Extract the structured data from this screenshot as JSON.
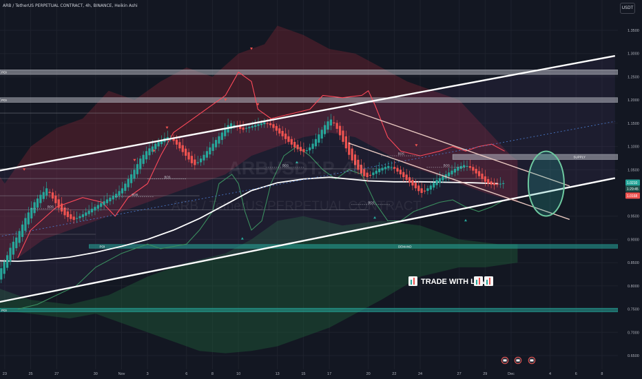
{
  "header": {
    "title": "ARB / TetherUS PERPETUAL CONTRACT, 4h, BINANCE, Heikin Ashi",
    "currency": "USDT"
  },
  "watermark": {
    "symbol": "ARBUSDT.P, 4h",
    "name": "ARB / TetherUS PERPETUAL CONTRACT"
  },
  "banner": {
    "text": "TRADE WITH LOVE",
    "emoji": "📈"
  },
  "colors": {
    "background": "#131722",
    "bull": "#26a69a",
    "bear": "#ef5350",
    "zone_gray": "#b2b5be",
    "zone_teal": "#26a69a",
    "supply_cloud": "#8b2635",
    "demand_cloud": "#1f5e3a",
    "channel": "#ffffff",
    "last_price_tag": "#26a69a",
    "low_tag": "#ef5350",
    "ma_white": "#ffffff",
    "envelope_red": "#ff4a5a",
    "envelope_green": "#3b8e5f",
    "dotted_mid": "#4a78c8",
    "falling_channel": "#e8c8c0"
  },
  "chart_data": {
    "type": "candlestick",
    "title": "ARB / TetherUS PERPETUAL CONTRACT, 4h, BINANCE, Heikin Ashi",
    "y_ticks": [
      "1.3500",
      "1.3000",
      "1.2500",
      "1.2000",
      "1.1500",
      "1.1000",
      "1.0500",
      "0.9500",
      "0.9000",
      "0.8500",
      "0.8000",
      "0.7500",
      "0.7000",
      "0.6500"
    ],
    "x_ticks": [
      "23",
      "25",
      "27",
      "30",
      "Nov",
      "3",
      "6",
      "8",
      "10",
      "13",
      "15",
      "17",
      "20",
      "22",
      "24",
      "27",
      "29",
      "Dec",
      "4",
      "6",
      "8"
    ],
    "ylim": [
      0.63,
      1.37
    ],
    "x_range": [
      "Oct 22",
      "Dec 9"
    ],
    "price_tags": [
      {
        "label": "1.0210",
        "kind": "last"
      },
      {
        "label": "1:29:45",
        "kind": "countdown"
      },
      {
        "label": "1.0168",
        "kind": "low"
      }
    ],
    "zones": [
      {
        "label": "POI",
        "y1": 1.265,
        "y2": 1.255,
        "kind": "gray"
      },
      {
        "label": "POI",
        "y1": 1.205,
        "y2": 1.195,
        "kind": "gray"
      },
      {
        "label": "SUPPLY",
        "y1": 1.083,
        "y2": 1.072,
        "kind": "gray"
      },
      {
        "label": "POI",
        "y1": 0.889,
        "y2": 0.881,
        "kind": "teal"
      },
      {
        "label": "DEMAND",
        "y1": 0.889,
        "y2": 0.881,
        "kind": "teal"
      },
      {
        "label": "POI",
        "y1": 0.752,
        "y2": 0.744,
        "kind": "teal"
      }
    ],
    "structure_labels": [
      "BOS",
      "BOS",
      "BOS",
      "BOS",
      "BOS",
      "BOS",
      "BOS"
    ],
    "key_levels": [
      1.172,
      1.052,
      1.031,
      0.994,
      0.964,
      0.911
    ],
    "rising_channel": {
      "upper": [
        {
          "x": 0,
          "y": 1.045
        },
        {
          "x": 48,
          "y": 1.295
        }
      ],
      "lower": [
        {
          "x": 0,
          "y": 0.762
        },
        {
          "x": 48,
          "y": 1.032
        }
      ],
      "mid": [
        {
          "x": 0,
          "y": 0.903
        },
        {
          "x": 48,
          "y": 1.154
        }
      ]
    },
    "falling_channel": {
      "upper": [
        {
          "x": 27.5,
          "y": 1.18
        },
        {
          "x": 44.5,
          "y": 1.015
        }
      ],
      "lower": [
        {
          "x": 27.5,
          "y": 1.107
        },
        {
          "x": 44.5,
          "y": 0.943
        }
      ]
    },
    "target_circle": {
      "x": 42.7,
      "y": 1.02
    },
    "closes": [
      0.786,
      0.798,
      0.812,
      0.826,
      0.838,
      0.852,
      0.866,
      0.882,
      0.895,
      0.904,
      0.918,
      0.932,
      0.946,
      0.958,
      0.968,
      0.98,
      0.988,
      0.996,
      1.002,
      1.01,
      1.0,
      0.988,
      0.978,
      0.968,
      0.96,
      0.952,
      0.948,
      0.944,
      0.942,
      0.946,
      0.95,
      0.954,
      0.958,
      0.962,
      0.966,
      0.97,
      0.974,
      0.978,
      0.982,
      0.986,
      0.99,
      0.994,
      0.998,
      1.004,
      1.01,
      1.02,
      1.03,
      1.04,
      1.05,
      1.062,
      1.074,
      1.082,
      1.09,
      1.096,
      1.1,
      1.106,
      1.11,
      1.114,
      1.118,
      1.12,
      1.118,
      1.112,
      1.104,
      1.096,
      1.088,
      1.08,
      1.072,
      1.064,
      1.06,
      1.066,
      1.074,
      1.082,
      1.09,
      1.098,
      1.106,
      1.114,
      1.122,
      1.13,
      1.138,
      1.146,
      1.15,
      1.146,
      1.142,
      1.138,
      1.136,
      1.14,
      1.142,
      1.144,
      1.146,
      1.148,
      1.15,
      1.152,
      1.15,
      1.146,
      1.14,
      1.134,
      1.128,
      1.122,
      1.116,
      1.11,
      1.104,
      1.098,
      1.094,
      1.09,
      1.088,
      1.092,
      1.098,
      1.106,
      1.116,
      1.126,
      1.136,
      1.146,
      1.154,
      1.158,
      1.15,
      1.138,
      1.124,
      1.11,
      1.096,
      1.082,
      1.07,
      1.06,
      1.05,
      1.042,
      1.036,
      1.034,
      1.038,
      1.044,
      1.048,
      1.052,
      1.054,
      1.056,
      1.058,
      1.056,
      1.052,
      1.046,
      1.04,
      1.034,
      1.028,
      1.022,
      1.016,
      1.01,
      1.004,
      1.0,
      1.004,
      1.01,
      1.016,
      1.022,
      1.028,
      1.032,
      1.036,
      1.04,
      1.044,
      1.048,
      1.052,
      1.056,
      1.058,
      1.06,
      1.058,
      1.054,
      1.048,
      1.042,
      1.036,
      1.03,
      1.024,
      1.02,
      1.018,
      1.017,
      1.018,
      1.02,
      1.021
    ]
  }
}
